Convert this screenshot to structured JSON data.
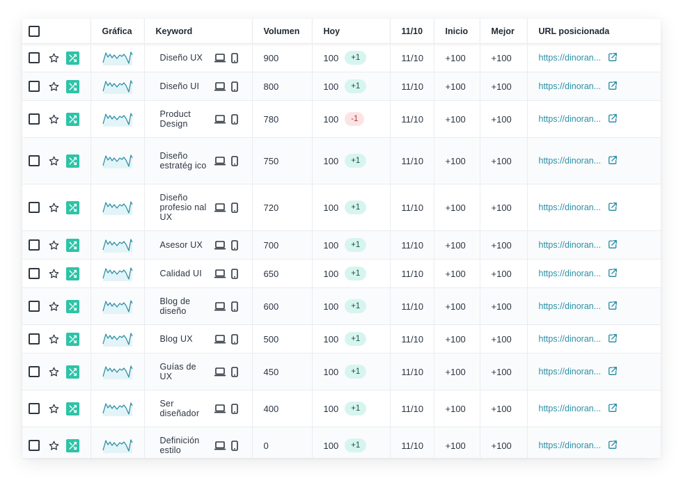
{
  "headers": {
    "select": "",
    "grafica": "Gráfica",
    "keyword": "Keyword",
    "volumen": "Volumen",
    "hoy": "Hoy",
    "date": "11/10",
    "inicio": "Inicio",
    "mejor": "Mejor",
    "url": "URL posicionada"
  },
  "icons": {
    "checkbox": "checkbox-icon",
    "star": "star-icon",
    "shuffle": "shuffle-icon",
    "sparkline": "sparkline-icon",
    "laptop": "laptop-icon",
    "mobile": "mobile-icon",
    "external": "external-link-icon"
  },
  "colors": {
    "accent": "#2ec3a7",
    "link": "#2c8fa6",
    "badge_pos_bg": "#d7f5ef",
    "badge_neg_bg": "#fde4e4"
  },
  "rows": [
    {
      "keyword": "Diseño UX",
      "volumen": "900",
      "hoy": "100",
      "change": "+1",
      "sign": "pos",
      "date": "11/10",
      "inicio": "+100",
      "mejor": "+100",
      "url": "https://dinoran..."
    },
    {
      "keyword": "Diseño UI",
      "volumen": "800",
      "hoy": "100",
      "change": "+1",
      "sign": "pos",
      "date": "11/10",
      "inicio": "+100",
      "mejor": "+100",
      "url": "https://dinoran..."
    },
    {
      "keyword": "Product Design",
      "volumen": "780",
      "hoy": "100",
      "change": "-1",
      "sign": "neg",
      "date": "11/10",
      "inicio": "+100",
      "mejor": "+100",
      "url": "https://dinoran..."
    },
    {
      "keyword": "Diseño estratég ico",
      "volumen": "750",
      "hoy": "100",
      "change": "+1",
      "sign": "pos",
      "date": "11/10",
      "inicio": "+100",
      "mejor": "+100",
      "url": "https://dinoran..."
    },
    {
      "keyword": "Diseño profesio nal UX",
      "volumen": "720",
      "hoy": "100",
      "change": "+1",
      "sign": "pos",
      "date": "11/10",
      "inicio": "+100",
      "mejor": "+100",
      "url": "https://dinoran..."
    },
    {
      "keyword": "Asesor UX",
      "volumen": "700",
      "hoy": "100",
      "change": "+1",
      "sign": "pos",
      "date": "11/10",
      "inicio": "+100",
      "mejor": "+100",
      "url": "https://dinoran..."
    },
    {
      "keyword": "Calidad UI",
      "volumen": "650",
      "hoy": "100",
      "change": "+1",
      "sign": "pos",
      "date": "11/10",
      "inicio": "+100",
      "mejor": "+100",
      "url": "https://dinoran..."
    },
    {
      "keyword": "Blog de diseño",
      "volumen": "600",
      "hoy": "100",
      "change": "+1",
      "sign": "pos",
      "date": "11/10",
      "inicio": "+100",
      "mejor": "+100",
      "url": "https://dinoran..."
    },
    {
      "keyword": "Blog UX",
      "volumen": "500",
      "hoy": "100",
      "change": "+1",
      "sign": "pos",
      "date": "11/10",
      "inicio": "+100",
      "mejor": "+100",
      "url": "https://dinoran..."
    },
    {
      "keyword": "Guías de UX",
      "volumen": "450",
      "hoy": "100",
      "change": "+1",
      "sign": "pos",
      "date": "11/10",
      "inicio": "+100",
      "mejor": "+100",
      "url": "https://dinoran..."
    },
    {
      "keyword": "Ser diseñador",
      "volumen": "400",
      "hoy": "100",
      "change": "+1",
      "sign": "pos",
      "date": "11/10",
      "inicio": "+100",
      "mejor": "+100",
      "url": "https://dinoran..."
    },
    {
      "keyword": "Definición estilo",
      "volumen": "0",
      "hoy": "100",
      "change": "+1",
      "sign": "pos",
      "date": "11/10",
      "inicio": "+100",
      "mejor": "+100",
      "url": "https://dinoran..."
    }
  ]
}
